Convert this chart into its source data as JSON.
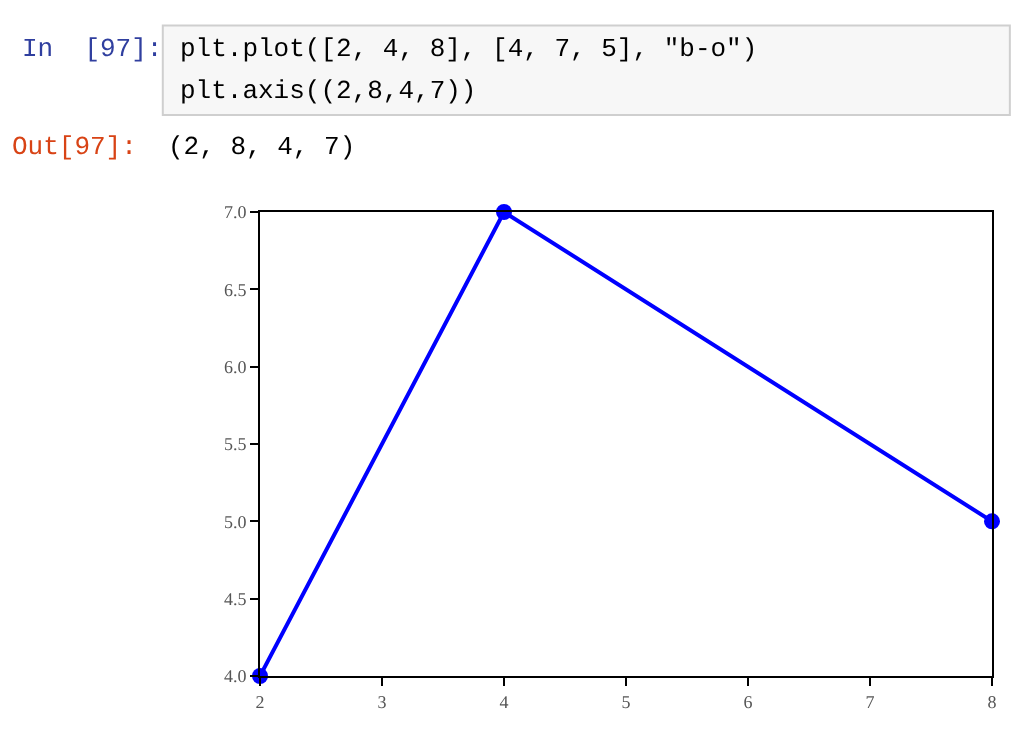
{
  "chart_data": {
    "type": "line",
    "x": [
      2,
      4,
      8
    ],
    "series": [
      {
        "color": "#0000ff",
        "values": [
          4,
          7,
          5
        ]
      }
    ],
    "xlim": [
      2,
      8
    ],
    "xticks": [
      2,
      3,
      4,
      5,
      6,
      7,
      8
    ],
    "ylim": [
      4,
      7
    ],
    "yticks": [
      {
        "value": 4,
        "label": "4.0"
      },
      {
        "value": 4.5,
        "label": "4.5"
      },
      {
        "value": 5,
        "label": "5.0"
      },
      {
        "value": 5.5,
        "label": "5.5"
      },
      {
        "value": 6,
        "label": "6.0"
      },
      {
        "value": 6.5,
        "label": "6.5"
      },
      {
        "value": 7,
        "label": "7.0"
      }
    ],
    "marker": "circle",
    "line_style": "solid",
    "annotations": [
      "In  [97]:",
      "plt.plot([2, 4, 8], [4, 7, 5], \"b-o\")",
      "plt.axis((2,8,4,7))",
      "Out[97]:",
      "(2, 8, 4, 7)"
    ]
  }
}
